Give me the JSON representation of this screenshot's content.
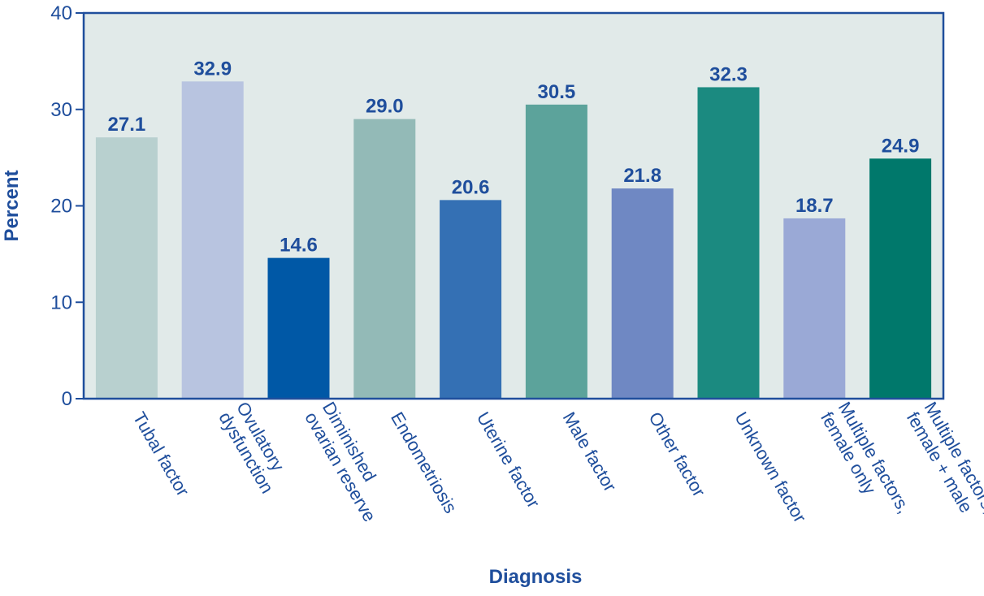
{
  "chart_data": {
    "type": "bar",
    "title": "",
    "xlabel": "Diagnosis",
    "ylabel": "Percent",
    "ylim": [
      0,
      40
    ],
    "yticks": [
      0,
      10,
      20,
      30,
      40
    ],
    "grid": false,
    "categories": [
      "Tubal factor",
      "Ovulatory dysfunction",
      "Diminished ovarian reserve",
      "Endometriosis",
      "Uterine factor",
      "Male factor",
      "Other factor",
      "Unknown factor",
      "Multiple factors, female only",
      "Multiple factors, female + male"
    ],
    "category_lines": [
      [
        "Tubal factor"
      ],
      [
        "Ovulatory",
        "dysfunction"
      ],
      [
        "Diminished",
        "ovarian reserve"
      ],
      [
        "Endometriosis"
      ],
      [
        "Uterine factor"
      ],
      [
        "Male factor"
      ],
      [
        "Other factor"
      ],
      [
        "Unknown factor"
      ],
      [
        "Multiple factors,",
        "female only"
      ],
      [
        "Multiple factors,",
        "female + male"
      ]
    ],
    "values": [
      27.1,
      32.9,
      14.6,
      29.0,
      20.6,
      30.5,
      21.8,
      32.3,
      18.7,
      24.9
    ],
    "value_labels": [
      "27.1",
      "32.9",
      "14.6",
      "29.0",
      "20.6",
      "30.5",
      "21.8",
      "32.3",
      "18.7",
      "24.9"
    ],
    "bar_colors": [
      "#b8d0cf",
      "#b8c4e0",
      "#0058a6",
      "#93bab7",
      "#3470b4",
      "#5ca39b",
      "#6f88c3",
      "#1b8a80",
      "#9aa9d6",
      "#00786b"
    ],
    "colors": {
      "plot_background": "#e1eae9",
      "frame": "#1f4e9c",
      "text": "#1f4e9c"
    }
  }
}
